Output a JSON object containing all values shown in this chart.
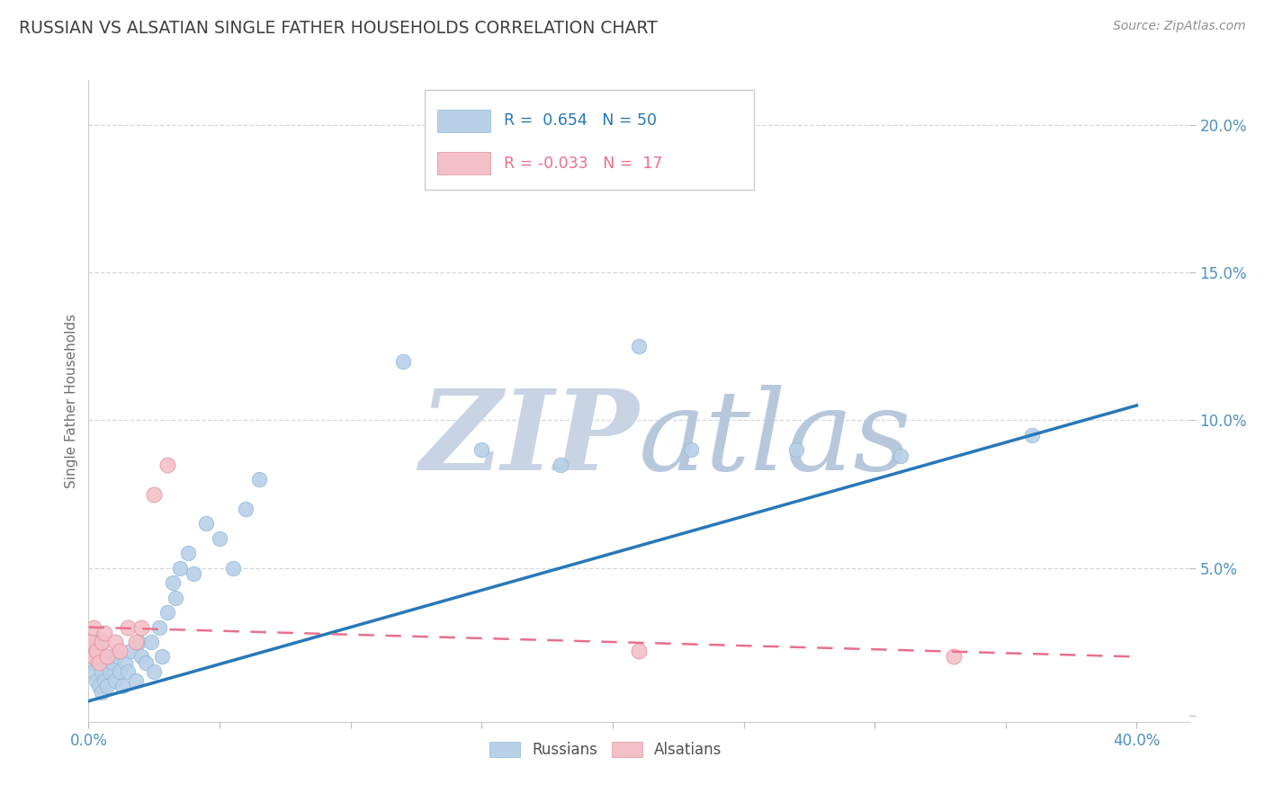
{
  "title": "RUSSIAN VS ALSATIAN SINGLE FATHER HOUSEHOLDS CORRELATION CHART",
  "source_text": "Source: ZipAtlas.com",
  "ylabel": "Single Father Households",
  "xlim": [
    0.0,
    0.42
  ],
  "ylim": [
    -0.002,
    0.215
  ],
  "r_russian": 0.654,
  "n_russian": 50,
  "r_alsatian": -0.033,
  "n_alsatian": 17,
  "russian_color": "#b8d0e8",
  "russian_edge_color": "#90b8d8",
  "alsatian_color": "#f4c0c8",
  "alsatian_edge_color": "#e0909c",
  "russian_line_color": "#2878b8",
  "alsatian_line_color": "#e8708c",
  "watermark_zip_color": "#c8d4e4",
  "watermark_atlas_color": "#b8c8dc",
  "background_color": "#ffffff",
  "grid_color": "#d0d4da",
  "title_color": "#404040",
  "axis_color": "#5090c0",
  "ylabel_color": "#707070",
  "legend_label_russian": "Russians",
  "legend_label_alsatian": "Alsatians",
  "russians_x": [
    0.001,
    0.001,
    0.002,
    0.002,
    0.003,
    0.003,
    0.004,
    0.004,
    0.005,
    0.005,
    0.005,
    0.006,
    0.006,
    0.007,
    0.008,
    0.009,
    0.01,
    0.011,
    0.012,
    0.013,
    0.014,
    0.015,
    0.016,
    0.018,
    0.019,
    0.02,
    0.022,
    0.024,
    0.025,
    0.027,
    0.028,
    0.03,
    0.032,
    0.033,
    0.035,
    0.038,
    0.04,
    0.045,
    0.05,
    0.055,
    0.06,
    0.065,
    0.12,
    0.15,
    0.18,
    0.21,
    0.23,
    0.27,
    0.31,
    0.36
  ],
  "russians_y": [
    0.018,
    0.022,
    0.015,
    0.025,
    0.012,
    0.02,
    0.01,
    0.018,
    0.015,
    0.008,
    0.025,
    0.012,
    0.02,
    0.01,
    0.015,
    0.018,
    0.012,
    0.02,
    0.015,
    0.01,
    0.018,
    0.015,
    0.022,
    0.012,
    0.025,
    0.02,
    0.018,
    0.025,
    0.015,
    0.03,
    0.02,
    0.035,
    0.045,
    0.04,
    0.05,
    0.055,
    0.048,
    0.065,
    0.06,
    0.05,
    0.07,
    0.08,
    0.12,
    0.09,
    0.085,
    0.125,
    0.09,
    0.09,
    0.088,
    0.095
  ],
  "alsatians_x": [
    0.001,
    0.002,
    0.002,
    0.003,
    0.004,
    0.005,
    0.006,
    0.007,
    0.01,
    0.012,
    0.015,
    0.018,
    0.02,
    0.025,
    0.03,
    0.21,
    0.33
  ],
  "alsatians_y": [
    0.025,
    0.02,
    0.03,
    0.022,
    0.018,
    0.025,
    0.028,
    0.02,
    0.025,
    0.022,
    0.03,
    0.025,
    0.03,
    0.075,
    0.085,
    0.022,
    0.02
  ],
  "russian_trendline_x": [
    0.0,
    0.4
  ],
  "russian_trendline_y": [
    0.005,
    0.105
  ],
  "alsatian_trendline_x": [
    0.0,
    0.4
  ],
  "alsatian_trendline_y": [
    0.03,
    0.02
  ]
}
